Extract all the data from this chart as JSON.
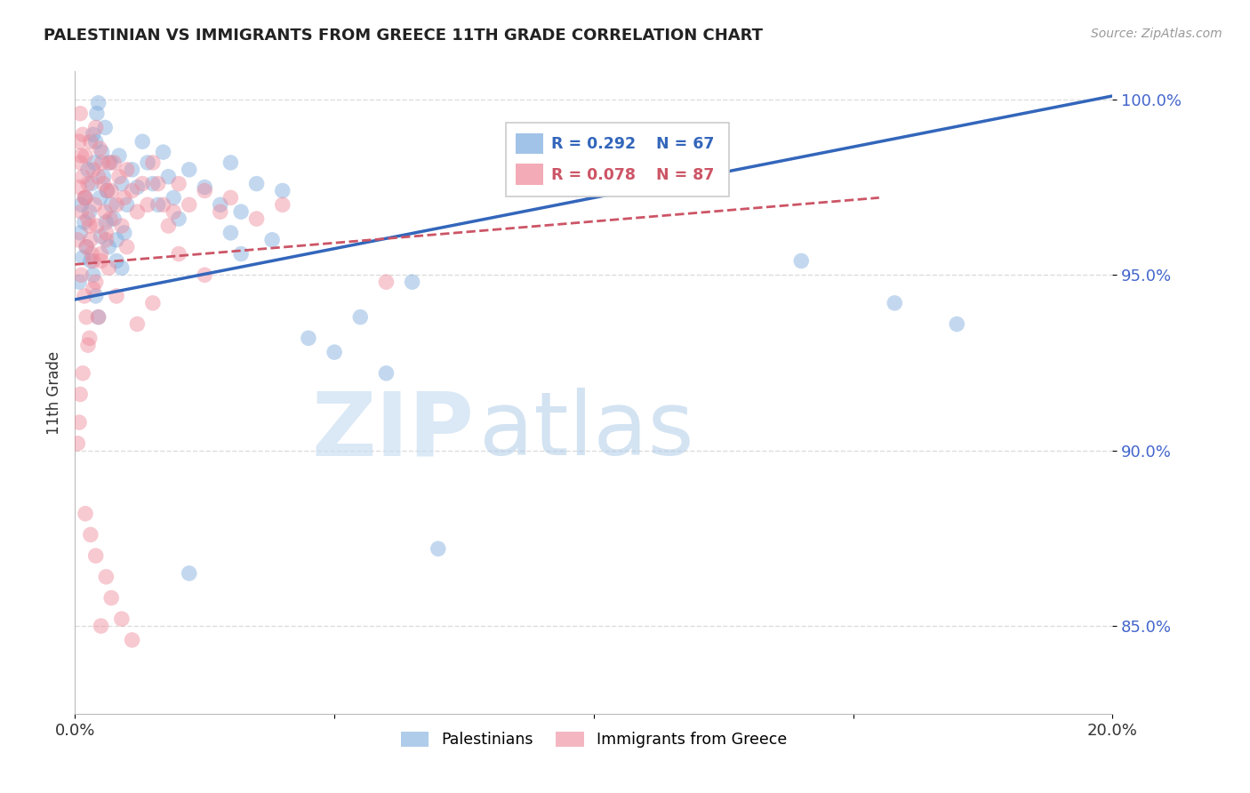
{
  "title": "PALESTINIAN VS IMMIGRANTS FROM GREECE 11TH GRADE CORRELATION CHART",
  "source": "Source: ZipAtlas.com",
  "ylabel": "11th Grade",
  "xlim": [
    0.0,
    0.2
  ],
  "ylim": [
    0.825,
    1.008
  ],
  "yticks": [
    0.85,
    0.9,
    0.95,
    1.0
  ],
  "ytick_labels": [
    "85.0%",
    "90.0%",
    "95.0%",
    "100.0%"
  ],
  "grid_color": "#cccccc",
  "background_color": "#ffffff",
  "blue_color": "#7aaadd",
  "pink_color": "#ee8899",
  "blue_line_color": "#3366bb",
  "pink_line_color": "#cc5566",
  "watermark_zip": "ZIP",
  "watermark_atlas": "atlas",
  "blue_trend_x": [
    0.0,
    0.2
  ],
  "blue_trend_y": [
    0.943,
    1.001
  ],
  "pink_trend_x": [
    0.0,
    0.155
  ],
  "pink_trend_y": [
    0.953,
    0.972
  ],
  "blue_scatter_x": [
    0.0008,
    0.001,
    0.0012,
    0.0015,
    0.0018,
    0.002,
    0.0022,
    0.0025,
    0.0028,
    0.003,
    0.0032,
    0.0035,
    0.0038,
    0.004,
    0.0042,
    0.0045,
    0.0048,
    0.005,
    0.0052,
    0.0055,
    0.0058,
    0.006,
    0.0062,
    0.0065,
    0.0068,
    0.007,
    0.0075,
    0.008,
    0.0085,
    0.009,
    0.0095,
    0.01,
    0.011,
    0.012,
    0.013,
    0.014,
    0.015,
    0.016,
    0.017,
    0.018,
    0.019,
    0.02,
    0.022,
    0.025,
    0.028,
    0.03,
    0.032,
    0.035,
    0.038,
    0.04,
    0.045,
    0.05,
    0.055,
    0.06,
    0.065,
    0.07,
    0.14,
    0.158,
    0.17,
    0.0035,
    0.004,
    0.0045,
    0.008,
    0.009,
    0.03,
    0.032,
    0.022
  ],
  "blue_scatter_y": [
    0.948,
    0.962,
    0.97,
    0.955,
    0.965,
    0.972,
    0.958,
    0.98,
    0.968,
    0.954,
    0.976,
    0.99,
    0.982,
    0.988,
    0.996,
    0.999,
    0.972,
    0.961,
    0.985,
    0.978,
    0.992,
    0.965,
    0.974,
    0.958,
    0.982,
    0.97,
    0.966,
    0.954,
    0.984,
    0.976,
    0.962,
    0.97,
    0.98,
    0.975,
    0.988,
    0.982,
    0.976,
    0.97,
    0.985,
    0.978,
    0.972,
    0.966,
    0.98,
    0.975,
    0.97,
    0.982,
    0.968,
    0.976,
    0.96,
    0.974,
    0.932,
    0.928,
    0.938,
    0.922,
    0.948,
    0.872,
    0.954,
    0.942,
    0.936,
    0.95,
    0.944,
    0.938,
    0.96,
    0.952,
    0.962,
    0.956,
    0.865
  ],
  "pink_scatter_x": [
    0.0005,
    0.0008,
    0.001,
    0.0012,
    0.0015,
    0.0018,
    0.002,
    0.0022,
    0.0025,
    0.0028,
    0.003,
    0.0032,
    0.0035,
    0.0038,
    0.004,
    0.0042,
    0.0045,
    0.0048,
    0.005,
    0.0052,
    0.0055,
    0.0058,
    0.006,
    0.0062,
    0.0065,
    0.0068,
    0.007,
    0.0075,
    0.008,
    0.0085,
    0.009,
    0.0095,
    0.01,
    0.011,
    0.012,
    0.013,
    0.014,
    0.015,
    0.016,
    0.017,
    0.018,
    0.019,
    0.02,
    0.022,
    0.025,
    0.028,
    0.03,
    0.035,
    0.04,
    0.0008,
    0.001,
    0.0012,
    0.0015,
    0.002,
    0.0025,
    0.003,
    0.0035,
    0.004,
    0.005,
    0.006,
    0.0012,
    0.0018,
    0.0022,
    0.0028,
    0.005,
    0.06,
    0.02,
    0.025,
    0.015,
    0.012,
    0.01,
    0.008,
    0.0065,
    0.0045,
    0.0035,
    0.0025,
    0.0015,
    0.001,
    0.0008,
    0.0005,
    0.002,
    0.003,
    0.004,
    0.006,
    0.007,
    0.009,
    0.011
  ],
  "pink_scatter_y": [
    0.96,
    0.975,
    0.982,
    0.968,
    0.99,
    0.972,
    0.984,
    0.958,
    0.976,
    0.964,
    0.988,
    0.956,
    0.98,
    0.97,
    0.992,
    0.964,
    0.978,
    0.986,
    0.954,
    0.982,
    0.976,
    0.968,
    0.96,
    0.974,
    0.982,
    0.966,
    0.974,
    0.982,
    0.97,
    0.978,
    0.964,
    0.972,
    0.98,
    0.974,
    0.968,
    0.976,
    0.97,
    0.982,
    0.976,
    0.97,
    0.964,
    0.968,
    0.976,
    0.97,
    0.974,
    0.968,
    0.972,
    0.966,
    0.97,
    0.988,
    0.996,
    0.984,
    0.978,
    0.972,
    0.966,
    0.96,
    0.954,
    0.948,
    0.956,
    0.962,
    0.95,
    0.944,
    0.938,
    0.932,
    0.85,
    0.948,
    0.956,
    0.95,
    0.942,
    0.936,
    0.958,
    0.944,
    0.952,
    0.938,
    0.946,
    0.93,
    0.922,
    0.916,
    0.908,
    0.902,
    0.882,
    0.876,
    0.87,
    0.864,
    0.858,
    0.852,
    0.846
  ]
}
